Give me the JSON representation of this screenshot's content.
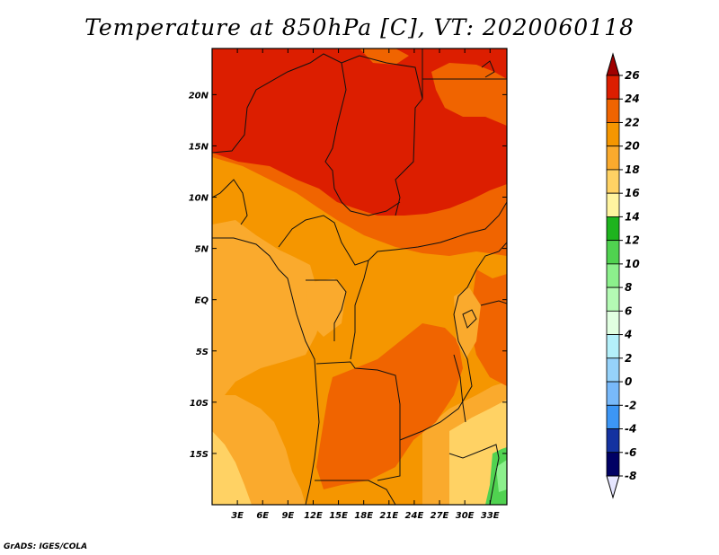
{
  "title": "Temperature at 850hPa [C], VT: 2020060118",
  "credit": "GrADS: IGES/COLA",
  "map": {
    "lon_range": [
      0,
      35
    ],
    "lat_range": [
      -20,
      24.5
    ],
    "x_ticks": [
      {
        "value": 3,
        "label": "3E"
      },
      {
        "value": 6,
        "label": "6E"
      },
      {
        "value": 9,
        "label": "9E"
      },
      {
        "value": 12,
        "label": "12E"
      },
      {
        "value": 15,
        "label": "15E"
      },
      {
        "value": 18,
        "label": "18E"
      },
      {
        "value": 21,
        "label": "21E"
      },
      {
        "value": 24,
        "label": "24E"
      },
      {
        "value": 27,
        "label": "27E"
      },
      {
        "value": 30,
        "label": "30E"
      },
      {
        "value": 33,
        "label": "33E"
      }
    ],
    "y_ticks": [
      {
        "value": 20,
        "label": "20N"
      },
      {
        "value": 15,
        "label": "15N"
      },
      {
        "value": 10,
        "label": "10N"
      },
      {
        "value": 5,
        "label": "5N"
      },
      {
        "value": 0,
        "label": "EQ"
      },
      {
        "value": -5,
        "label": "5S"
      },
      {
        "value": -10,
        "label": "10S"
      },
      {
        "value": -15,
        "label": "15S"
      }
    ]
  },
  "colorbar": {
    "levels": [
      {
        "value": 26,
        "label": "26",
        "color": "#a00000"
      },
      {
        "value": 24,
        "label": "24",
        "color": "#dc1e00"
      },
      {
        "value": 22,
        "label": "22",
        "color": "#f06400"
      },
      {
        "value": 20,
        "label": "20",
        "color": "#f59600"
      },
      {
        "value": 18,
        "label": "18",
        "color": "#faaa2d"
      },
      {
        "value": 16,
        "label": "16",
        "color": "#ffd264"
      },
      {
        "value": 14,
        "label": "14",
        "color": "#fff4a0"
      },
      {
        "value": 12,
        "label": "12",
        "color": "#1eb41e"
      },
      {
        "value": 10,
        "label": "10",
        "color": "#50d250"
      },
      {
        "value": 8,
        "label": "8",
        "color": "#8cf08c"
      },
      {
        "value": 6,
        "label": "6",
        "color": "#b4fab4"
      },
      {
        "value": 4,
        "label": "4",
        "color": "#e1ffe1"
      },
      {
        "value": 2,
        "label": "2",
        "color": "#b4f0fa"
      },
      {
        "value": 0,
        "label": "0",
        "color": "#96d2fa"
      },
      {
        "value": -2,
        "label": "-2",
        "color": "#78b9fa"
      },
      {
        "value": -4,
        "label": "-4",
        "color": "#3c96f5"
      },
      {
        "value": -6,
        "label": "-6",
        "color": "#1e6ee6"
      },
      {
        "value": -8,
        "label": "-8",
        "color": "#0a46c8"
      }
    ],
    "below_color": "#1432a0",
    "bottom_color": "#000064",
    "under_color": "#e6e6ff",
    "top_color": "#dc1e00"
  },
  "temperature_field": {
    "units": "C",
    "regions": [
      {
        "band": "24-26",
        "color": "#dc1e00"
      },
      {
        "band": "22-24",
        "color": "#f06400"
      },
      {
        "band": "20-22",
        "color": "#f59600"
      },
      {
        "band": "18-20",
        "color": "#faaa2d"
      },
      {
        "band": "16-18",
        "color": "#ffd264"
      },
      {
        "band": "10-14",
        "color": "#50d250"
      }
    ]
  }
}
